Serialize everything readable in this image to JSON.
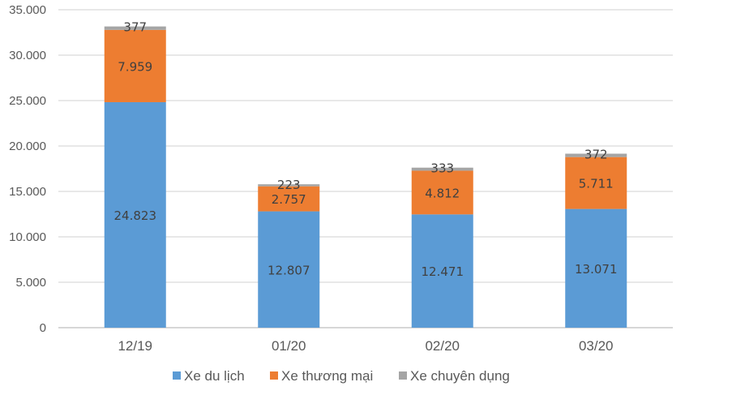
{
  "chart_data": {
    "type": "bar",
    "stacked": true,
    "categories": [
      "12/19",
      "01/20",
      "02/20",
      "03/20"
    ],
    "series": [
      {
        "name": "Xe du lịch",
        "color": "#5b9bd5",
        "values": [
          24823,
          12807,
          12471,
          13071
        ],
        "labels": [
          "24.823",
          "12.807",
          "12.471",
          "13.071"
        ]
      },
      {
        "name": "Xe thương mại",
        "color": "#ed7d31",
        "values": [
          7959,
          2757,
          4812,
          5711
        ],
        "labels": [
          "7.959",
          "2.757",
          "4.812",
          "5.711"
        ]
      },
      {
        "name": "Xe chuyên dụng",
        "color": "#a5a5a5",
        "values": [
          377,
          223,
          333,
          372
        ],
        "labels": [
          "377",
          "223",
          "333",
          "372"
        ]
      }
    ],
    "ylim": [
      0,
      35000
    ],
    "yticks": [
      "0",
      "5.000",
      "10.000",
      "15.000",
      "20.000",
      "25.000",
      "30.000",
      "35.000"
    ],
    "grid": true,
    "legend": "bottom"
  }
}
